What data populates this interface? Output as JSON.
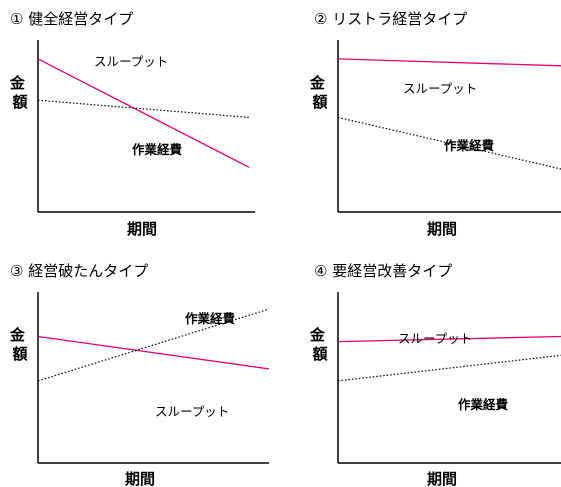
{
  "chart_data": [
    {
      "type": "line",
      "title": "① 健全経営タイプ",
      "ylabel": "金額",
      "xlabel": "期間",
      "xlim": [
        0,
        1
      ],
      "ylim": [
        0,
        1
      ],
      "grid": false,
      "series": [
        {
          "name": "スループット",
          "color": "#e0006e",
          "style": "solid",
          "x": [
            0,
            1
          ],
          "y": [
            0.89,
            0.26
          ]
        },
        {
          "name": "作業経費",
          "color": "#000000",
          "style": "dotted",
          "x": [
            0,
            1
          ],
          "y": [
            0.65,
            0.55
          ]
        }
      ]
    },
    {
      "type": "line",
      "title": "② リストラ経営タイプ",
      "ylabel": "金額",
      "xlabel": "期間",
      "xlim": [
        0,
        1
      ],
      "ylim": [
        0,
        1
      ],
      "grid": false,
      "series": [
        {
          "name": "スループット",
          "color": "#e0006e",
          "style": "solid",
          "x": [
            0,
            1
          ],
          "y": [
            0.89,
            0.85
          ]
        },
        {
          "name": "作業経費",
          "color": "#000000",
          "style": "dotted",
          "x": [
            0,
            1
          ],
          "y": [
            0.55,
            0.25
          ]
        }
      ]
    },
    {
      "type": "line",
      "title": "③ 経営破たんタイプ",
      "ylabel": "金額",
      "xlabel": "期間",
      "xlim": [
        0,
        1
      ],
      "ylim": [
        0,
        1
      ],
      "grid": false,
      "series": [
        {
          "name": "スループット",
          "color": "#e0006e",
          "style": "solid",
          "x": [
            0,
            1
          ],
          "y": [
            0.74,
            0.55
          ]
        },
        {
          "name": "作業経費",
          "color": "#000000",
          "style": "dotted",
          "x": [
            0,
            1
          ],
          "y": [
            0.48,
            0.9
          ]
        }
      ]
    },
    {
      "type": "line",
      "title": "④ 要経営改善タイプ",
      "ylabel": "金額",
      "xlabel": "期間",
      "xlim": [
        0,
        1
      ],
      "ylim": [
        0,
        1
      ],
      "grid": false,
      "series": [
        {
          "name": "スループット",
          "color": "#e0006e",
          "style": "solid",
          "x": [
            0,
            1
          ],
          "y": [
            0.71,
            0.74
          ]
        },
        {
          "name": "作業経費",
          "color": "#000000",
          "style": "dotted",
          "x": [
            0,
            1
          ],
          "y": [
            0.48,
            0.63
          ]
        }
      ]
    }
  ]
}
